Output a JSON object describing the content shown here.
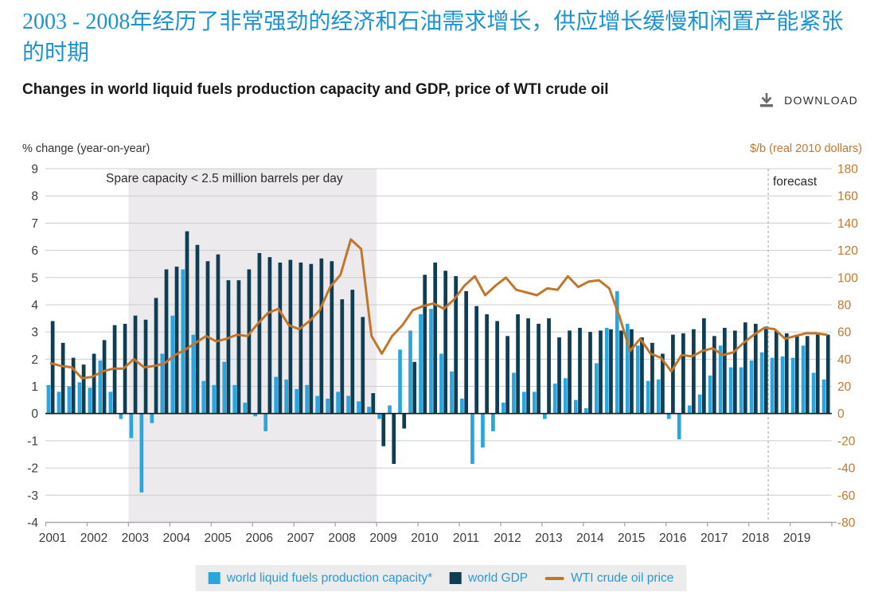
{
  "page": {
    "title_zh": "2003 - 2008年经历了非常强劲的经济和石油需求增长，供应增长缓慢和闲置产能紧张的时期",
    "subtitle": "Changes in world liquid fuels production capacity and GDP, price of WTI crude oil",
    "download_label": "DOWNLOAD"
  },
  "colors": {
    "title_blue": "#1e93d2",
    "legend_text": "#2899d8",
    "capacity_bar": "#2aa6df",
    "gdp_bar": "#0e3d54",
    "wti_line": "#c2762b",
    "right_axis_text": "#c1782f",
    "left_axis_text": "#3c3c3c",
    "gridline": "#cccccc",
    "shaded_region": "#eceaec",
    "zero_line": "#1a1a1a",
    "bottom_axis": "#a8a8a8",
    "forecast_dash": "#b0b0b0",
    "legend_bg": "#ececec",
    "annotation_text": "#2b2b2b"
  },
  "chart_data": {
    "type": "combo-bar-line",
    "title": "Changes in world liquid fuels production capacity and GDP, price of WTI crude oil",
    "x_start_year": 2001,
    "points_per_year": 4,
    "x_tick_labels": [
      "2001",
      "2002",
      "2003",
      "2004",
      "2005",
      "2006",
      "2007",
      "2008",
      "2009",
      "2010",
      "2011",
      "2012",
      "2013",
      "2014",
      "2015",
      "2016",
      "2017",
      "2018",
      "2019"
    ],
    "left_axis": {
      "label": "% change (year-on-year)",
      "min": -4,
      "max": 9,
      "step": 1
    },
    "right_axis": {
      "label": "$/b (real 2010 dollars)",
      "min": -80,
      "max": 180,
      "step": 20
    },
    "annotations": {
      "spare_capacity_text": "Spare capacity < 2.5 million barrels per day",
      "shaded_region_years": [
        2003,
        2009
      ],
      "forecast_label": "forecast",
      "forecast_start_year": 2018.47
    },
    "legend_position": "bottom",
    "grid": true,
    "series": [
      {
        "name": "world liquid fuels production capacity*",
        "type": "bar",
        "axis": "left",
        "color": "#2aa6df",
        "values": [
          1.05,
          0.8,
          1.0,
          1.15,
          0.95,
          1.95,
          0.8,
          -0.2,
          -0.9,
          -2.9,
          -0.35,
          2.2,
          3.6,
          5.3,
          2.9,
          1.2,
          1.05,
          1.9,
          1.05,
          0.4,
          -0.1,
          -0.65,
          1.35,
          1.25,
          0.9,
          1.05,
          0.65,
          0.55,
          0.8,
          0.65,
          0.45,
          0.25,
          -0.2,
          0.3,
          2.35,
          3.05,
          3.65,
          3.85,
          2.2,
          1.55,
          0.55,
          -1.85,
          -1.25,
          -0.65,
          0.4,
          1.5,
          0.8,
          0.8,
          -0.2,
          1.1,
          1.3,
          0.5,
          0.2,
          1.85,
          3.15,
          4.5,
          3.3,
          2.5,
          1.2,
          1.25,
          -0.2,
          -0.95,
          0.3,
          0.7,
          1.4,
          2.5,
          1.7,
          1.7,
          1.95,
          2.25,
          2.05,
          2.1,
          2.05,
          2.5,
          1.5,
          1.25
        ]
      },
      {
        "name": "world GDP",
        "type": "bar",
        "axis": "left",
        "color": "#0e3d54",
        "values": [
          3.4,
          2.6,
          2.05,
          1.8,
          2.2,
          2.7,
          3.25,
          3.3,
          3.6,
          3.45,
          4.25,
          5.3,
          5.4,
          6.7,
          6.2,
          5.6,
          5.85,
          4.9,
          4.9,
          5.3,
          5.9,
          5.75,
          5.55,
          5.65,
          5.55,
          5.5,
          5.7,
          5.6,
          4.2,
          4.55,
          3.55,
          0.75,
          -1.2,
          -1.85,
          -0.55,
          1.9,
          5.1,
          5.55,
          5.25,
          5.05,
          4.5,
          3.95,
          3.65,
          3.4,
          2.85,
          3.65,
          3.5,
          3.3,
          3.5,
          2.8,
          3.05,
          3.15,
          3.0,
          3.05,
          3.1,
          3.05,
          3.1,
          2.8,
          2.6,
          2.2,
          2.9,
          2.95,
          3.1,
          3.5,
          2.85,
          3.15,
          3.05,
          3.35,
          3.3,
          3.2,
          3.05,
          2.95,
          2.9,
          2.85,
          2.9,
          2.9
        ]
      },
      {
        "name": "WTI crude oil price",
        "type": "line",
        "axis": "right",
        "color": "#c2762b",
        "values": [
          37,
          35,
          34,
          26,
          27,
          31,
          33,
          33,
          40,
          34,
          35,
          37,
          43,
          47,
          52,
          57,
          53,
          55,
          58,
          57,
          66,
          74,
          77,
          65,
          62,
          68,
          76,
          93,
          102,
          128,
          121,
          57,
          44,
          57,
          65,
          76,
          79,
          81,
          77,
          84,
          94,
          101,
          87,
          94,
          100,
          91,
          89,
          87,
          92,
          91,
          101,
          93,
          97,
          98,
          92,
          71,
          46,
          55,
          44,
          41,
          31,
          43,
          42,
          46,
          48,
          43,
          45,
          52,
          58,
          63,
          62,
          55,
          57,
          59,
          59,
          58
        ]
      }
    ]
  }
}
